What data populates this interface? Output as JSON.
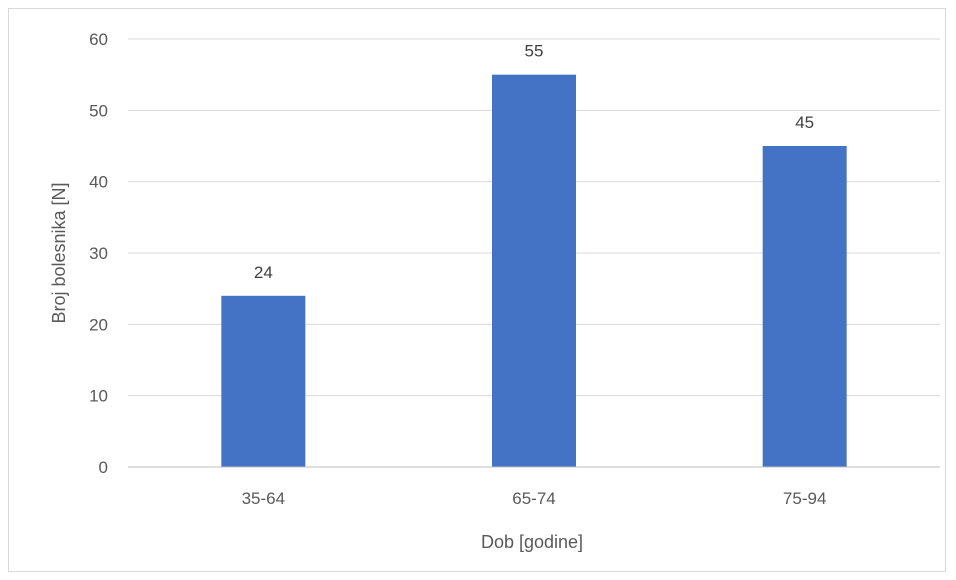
{
  "chart_data": {
    "type": "bar",
    "categories": [
      "35-64",
      "65-74",
      "75-94"
    ],
    "values": [
      24,
      55,
      45
    ],
    "title": "",
    "xlabel": "Dob [godine]",
    "ylabel": "Broj bolesnika [N]",
    "ylim": [
      0,
      60
    ],
    "yticks": [
      0,
      10,
      20,
      30,
      40,
      50,
      60
    ],
    "grid": true,
    "legend": "none",
    "data_labels": [
      "24",
      "55",
      "45"
    ],
    "colors": {
      "bar": "#4472C4",
      "grid": "#d9d9d9",
      "axis": "#bfbfbf",
      "text": "#595959"
    }
  }
}
